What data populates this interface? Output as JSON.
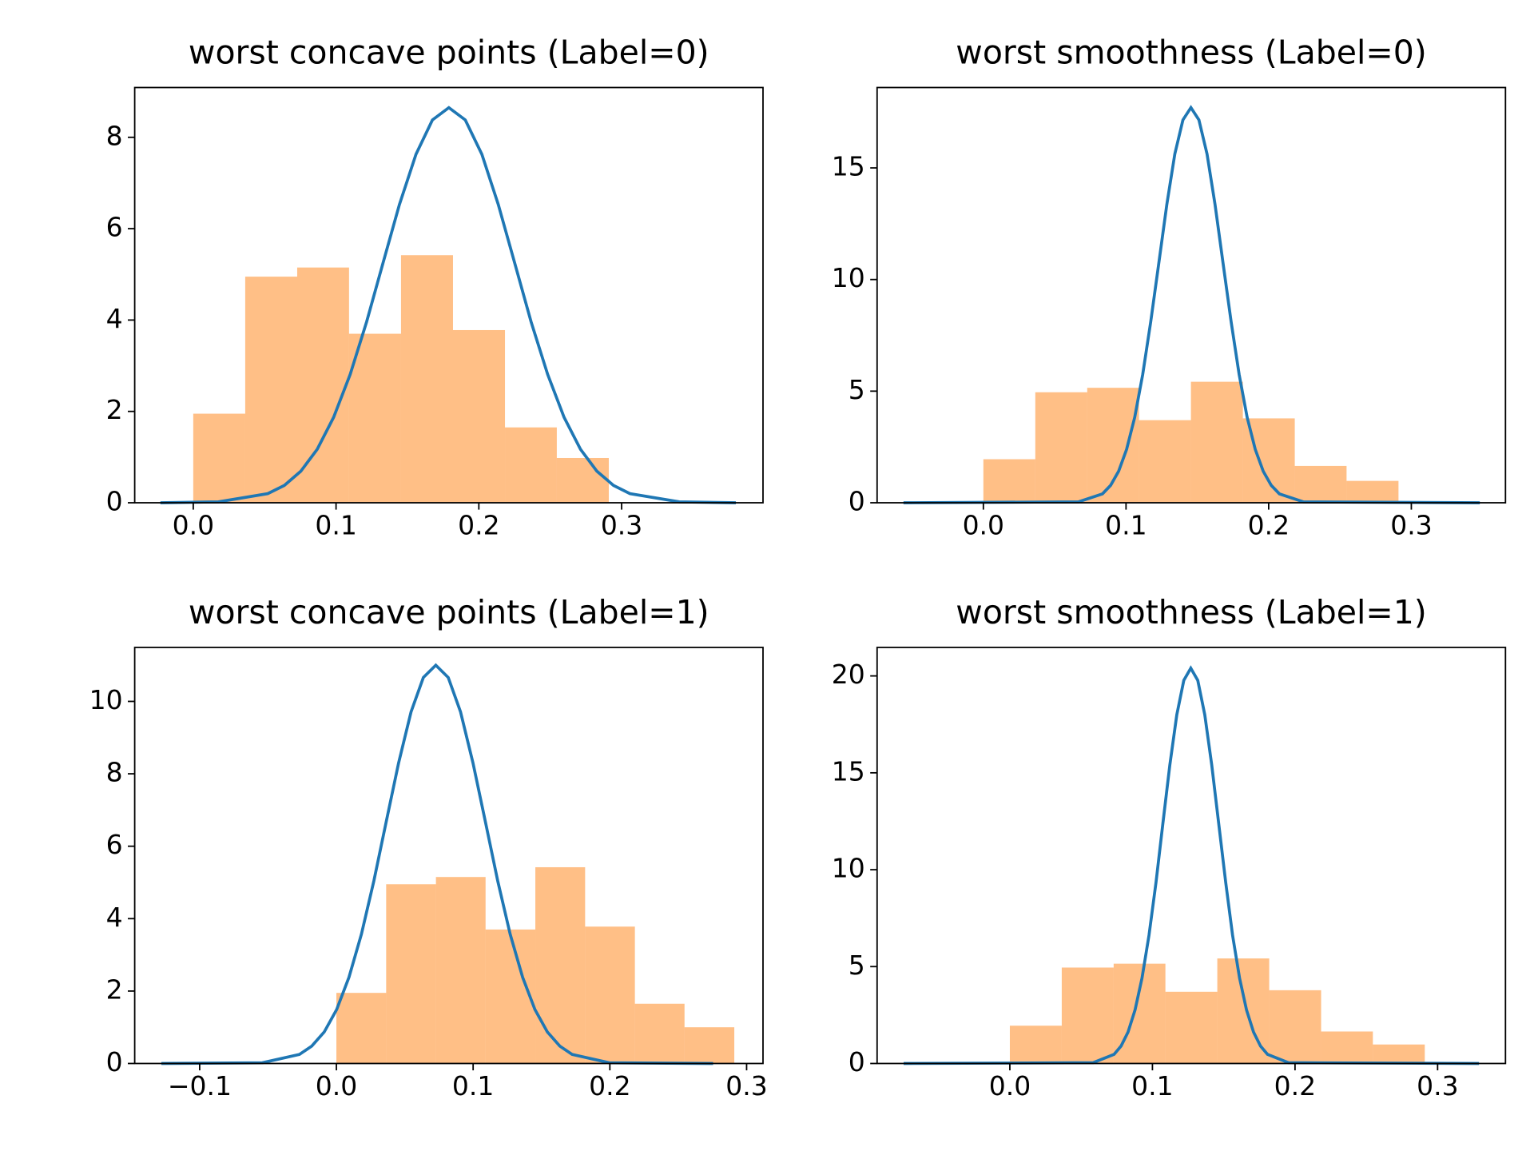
{
  "chart_data": [
    {
      "type": "histogram",
      "title": "worst concave points (Label=0)",
      "bins": [
        0,
        0.0364,
        0.0728,
        0.1091,
        0.1455,
        0.1819,
        0.2183,
        0.2546,
        0.291
      ],
      "values": [
        1.95,
        4.95,
        5.15,
        3.7,
        5.42,
        3.78,
        1.65,
        0.98
      ],
      "color": "#ff7f0e",
      "alpha": 0.5,
      "line": {
        "color": "#1f77b4",
        "x": [
          -0.023,
          0.0176,
          0.0522,
          0.0638,
          0.0753,
          0.0868,
          0.0983,
          0.1099,
          0.1214,
          0.1329,
          0.1444,
          0.156,
          0.1675,
          0.179,
          0.1905,
          0.2021,
          0.2136,
          0.2251,
          0.2366,
          0.2482,
          0.2597,
          0.2712,
          0.2827,
          0.2943,
          0.3058,
          0.3404,
          0.38
        ],
        "values": [
          0,
          0.02,
          0.2,
          0.38,
          0.69,
          1.17,
          1.87,
          2.81,
          3.96,
          5.25,
          6.53,
          7.63,
          8.38,
          8.65,
          8.38,
          7.63,
          6.53,
          5.25,
          3.96,
          2.81,
          1.87,
          1.17,
          0.69,
          0.38,
          0.2,
          0.02,
          0
        ]
      },
      "xlim": [
        -0.041,
        0.399
      ],
      "ylim": [
        0,
        9.09
      ],
      "xticks": [
        {
          "value": 0,
          "label": "0.0"
        },
        0.1,
        0.2,
        0.3
      ],
      "yticks": [
        0,
        2,
        4,
        6,
        8
      ]
    },
    {
      "type": "histogram",
      "title": "worst smoothness (Label=0)",
      "bins": [
        0,
        0.0364,
        0.0728,
        0.1091,
        0.1455,
        0.1819,
        0.2183,
        0.2546,
        0.291
      ],
      "values": [
        1.95,
        4.95,
        5.15,
        3.7,
        5.42,
        3.78,
        1.65,
        0.98
      ],
      "color": "#ff7f0e",
      "alpha": 0.5,
      "line": {
        "color": "#1f77b4",
        "x": [
          -0.056,
          0.0666,
          0.0835,
          0.0892,
          0.0948,
          0.1004,
          0.1061,
          0.1117,
          0.1173,
          0.123,
          0.1286,
          0.1342,
          0.1399,
          0.1455,
          0.1511,
          0.1568,
          0.1624,
          0.168,
          0.1737,
          0.1793,
          0.1849,
          0.1906,
          0.1962,
          0.2018,
          0.2075,
          0.2244,
          0.348
        ],
        "values": [
          0,
          0.04,
          0.4,
          0.78,
          1.41,
          2.39,
          3.83,
          5.75,
          8.1,
          10.74,
          13.36,
          15.62,
          17.15,
          17.7,
          17.15,
          15.62,
          13.36,
          10.74,
          8.1,
          5.75,
          3.83,
          2.39,
          1.41,
          0.78,
          0.4,
          0.04,
          0
        ]
      },
      "xlim": [
        -0.0745,
        0.366
      ],
      "ylim": [
        0,
        18.6
      ],
      "xticks": [
        {
          "value": 0,
          "label": "0.0"
        },
        0.1,
        0.2,
        0.3
      ],
      "yticks": [
        0,
        5,
        10,
        15
      ]
    },
    {
      "type": "histogram",
      "title": "worst concave points (Label=1)",
      "bins": [
        0,
        0.0364,
        0.0728,
        0.1091,
        0.1455,
        0.1819,
        0.2183,
        0.2546,
        0.291
      ],
      "values": [
        1.95,
        4.95,
        5.15,
        3.7,
        5.42,
        3.78,
        1.65,
        1.0
      ],
      "color": "#ff7f0e",
      "alpha": 0.5,
      "line": {
        "color": "#1f77b4",
        "x": [
          -0.128,
          -0.0542,
          -0.027,
          -0.018,
          -0.0089,
          0.0002,
          0.0092,
          0.0183,
          0.0274,
          0.0364,
          0.0455,
          0.0546,
          0.0636,
          0.0727,
          0.0818,
          0.0908,
          0.0999,
          0.109,
          0.118,
          0.1271,
          0.1362,
          0.1452,
          0.1543,
          0.1634,
          0.1724,
          0.1996,
          0.2755
        ],
        "values": [
          0,
          0.02,
          0.25,
          0.48,
          0.87,
          1.49,
          2.38,
          3.57,
          5.04,
          6.67,
          8.3,
          9.71,
          10.66,
          11.0,
          10.66,
          9.71,
          8.3,
          6.67,
          5.04,
          3.57,
          2.38,
          1.49,
          0.87,
          0.48,
          0.25,
          0.02,
          0
        ]
      },
      "xlim": [
        -0.1475,
        0.312
      ],
      "ylim": [
        0,
        11.49
      ],
      "xticks": [
        {
          "value": -0.1,
          "label": "−0.1"
        },
        {
          "value": 0,
          "label": "0.0"
        },
        0.1,
        0.2,
        0.3
      ],
      "yticks": [
        0,
        2,
        4,
        6,
        8,
        10
      ]
    },
    {
      "type": "histogram",
      "title": "worst smoothness (Label=1)",
      "bins": [
        0,
        0.0364,
        0.0728,
        0.1091,
        0.1455,
        0.1819,
        0.2183,
        0.2546,
        0.291
      ],
      "values": [
        1.95,
        4.95,
        5.15,
        3.7,
        5.42,
        3.78,
        1.65,
        0.98
      ],
      "color": "#ff7f0e",
      "alpha": 0.5,
      "line": {
        "color": "#1f77b4",
        "x": [
          -0.0745,
          0.0584,
          0.0731,
          0.078,
          0.0829,
          0.0878,
          0.0927,
          0.0976,
          0.1025,
          0.1073,
          0.1122,
          0.1171,
          0.122,
          0.1269,
          0.1318,
          0.1367,
          0.1416,
          0.1465,
          0.1514,
          0.1562,
          0.1611,
          0.166,
          0.1709,
          0.1758,
          0.1807,
          0.1954,
          0.329
        ],
        "values": [
          0,
          0.04,
          0.47,
          0.9,
          1.62,
          2.76,
          4.41,
          6.62,
          9.34,
          12.37,
          15.4,
          18.0,
          19.77,
          20.4,
          19.77,
          18.0,
          15.4,
          12.37,
          9.34,
          6.62,
          4.41,
          2.76,
          1.62,
          0.9,
          0.47,
          0.04,
          0
        ]
      },
      "xlim": [
        -0.0931,
        0.3476
      ],
      "ylim": [
        0,
        21.47
      ],
      "xticks": [
        {
          "value": 0,
          "label": "0.0"
        },
        0.1,
        0.2,
        0.3
      ],
      "yticks": [
        0,
        5,
        10,
        15,
        20
      ]
    }
  ]
}
